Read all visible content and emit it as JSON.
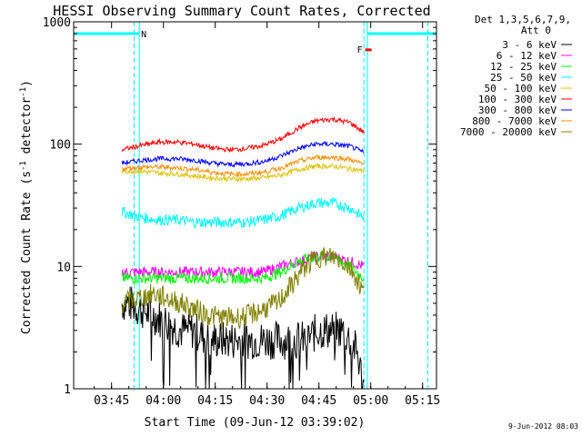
{
  "chart_data": {
    "type": "line",
    "title": "HESSI Observing Summary Count Rates, Corrected",
    "xlabel": "Start Time (09-Jun-12 03:39:02)",
    "ylabel_main": "Corrected Count Rate (s",
    "ylabel_sup1": "-1",
    "ylabel_mid": " detector",
    "ylabel_sup2": "-1",
    "ylabel_end": ")",
    "y_scale": "log",
    "ylim": [
      1,
      1000
    ],
    "xlim_minutes": [
      -5.0,
      100.0
    ],
    "x_ticks": [
      {
        "minute": 5.97,
        "label": "03:45"
      },
      {
        "minute": 20.97,
        "label": "04:00"
      },
      {
        "minute": 35.97,
        "label": "04:15"
      },
      {
        "minute": 50.97,
        "label": "04:30"
      },
      {
        "minute": 65.97,
        "label": "04:45"
      },
      {
        "minute": 80.97,
        "label": "05:00"
      },
      {
        "minute": 95.97,
        "label": "05:15"
      }
    ],
    "y_ticks": [
      {
        "value": 1,
        "label": "1"
      },
      {
        "value": 10,
        "label": "10"
      },
      {
        "value": 100,
        "label": "100"
      },
      {
        "value": 1000,
        "label": "1000"
      }
    ],
    "legend_header": [
      "Det 1,3,5,6,7,9,",
      "Att 0"
    ],
    "legend_position": "outside-right",
    "series": [
      {
        "name": "3 - 6 keV",
        "color": "#000000",
        "x": [
          9,
          11,
          14,
          18,
          22,
          26,
          30,
          34,
          38,
          42,
          46,
          50,
          54,
          58,
          62,
          66,
          70,
          73,
          75,
          77,
          79
        ],
        "values": [
          5,
          5,
          4.5,
          4,
          3.5,
          3,
          3,
          2.5,
          2.5,
          2.5,
          2.5,
          2.5,
          2.5,
          2.5,
          2.5,
          3,
          3,
          3,
          2.5,
          2,
          1
        ]
      },
      {
        "name": "6 - 12 keV",
        "color": "#ff00ff",
        "x": [
          9,
          15,
          20,
          25,
          30,
          35,
          40,
          45,
          50,
          55,
          60,
          65,
          70,
          75,
          79
        ],
        "values": [
          9,
          9,
          9,
          9,
          9,
          9,
          9,
          9,
          9,
          10,
          11,
          12,
          12,
          11,
          10
        ]
      },
      {
        "name": "12 - 25 keV",
        "color": "#00ff00",
        "x": [
          9,
          15,
          20,
          25,
          30,
          35,
          40,
          45,
          50,
          55,
          60,
          65,
          70,
          75,
          79
        ],
        "values": [
          8,
          8,
          8,
          8,
          8,
          8,
          8,
          8,
          8,
          9,
          11,
          12,
          12,
          10,
          8
        ]
      },
      {
        "name": "25 - 50 keV",
        "color": "#00ffff",
        "x": [
          9,
          15,
          20,
          25,
          30,
          35,
          40,
          45,
          50,
          55,
          60,
          65,
          70,
          75,
          79
        ],
        "values": [
          28,
          25,
          24,
          24,
          23,
          23,
          23,
          23,
          24,
          26,
          30,
          33,
          33,
          30,
          25
        ]
      },
      {
        "name": "50 - 100 keV",
        "color": "#e0c000",
        "x": [
          9,
          15,
          20,
          25,
          30,
          35,
          40,
          45,
          50,
          55,
          60,
          65,
          70,
          75,
          79
        ],
        "values": [
          60,
          60,
          58,
          57,
          55,
          53,
          52,
          52,
          53,
          56,
          62,
          66,
          66,
          63,
          60
        ]
      },
      {
        "name": "100 - 300 keV",
        "color": "#ff0000",
        "x": [
          9,
          15,
          20,
          25,
          30,
          35,
          40,
          45,
          50,
          55,
          60,
          65,
          70,
          75,
          79
        ],
        "values": [
          90,
          98,
          104,
          104,
          100,
          93,
          90,
          92,
          98,
          110,
          135,
          155,
          160,
          150,
          125
        ]
      },
      {
        "name": "300 - 800 keV",
        "color": "#0000ff",
        "x": [
          9,
          15,
          20,
          25,
          30,
          35,
          40,
          45,
          50,
          55,
          60,
          65,
          70,
          75,
          79
        ],
        "values": [
          70,
          74,
          76,
          76,
          74,
          70,
          68,
          69,
          72,
          80,
          92,
          100,
          100,
          96,
          85
        ]
      },
      {
        "name": "800 - 7000 keV",
        "color": "#ff8c00",
        "x": [
          9,
          15,
          20,
          25,
          30,
          35,
          40,
          45,
          50,
          55,
          60,
          65,
          70,
          75,
          79
        ],
        "values": [
          63,
          65,
          65,
          64,
          62,
          59,
          57,
          57,
          59,
          64,
          72,
          78,
          78,
          75,
          68
        ]
      },
      {
        "name": "7000 - 20000 keV",
        "color": "#808000",
        "x": [
          9,
          14,
          18,
          22,
          26,
          30,
          34,
          38,
          42,
          46,
          50,
          54,
          58,
          62,
          66,
          70,
          73,
          76,
          79
        ],
        "values": [
          5,
          5.5,
          6,
          5.5,
          5,
          4.5,
          4,
          3.8,
          3.8,
          4,
          4.5,
          5,
          7,
          10,
          12,
          12,
          11,
          9,
          6
        ]
      }
    ],
    "attenuator_bars": [
      {
        "start_minute": -5.0,
        "end_minute": 14.0,
        "level": 800
      },
      {
        "start_minute": 80.0,
        "end_minute": 100.0,
        "level": 800
      }
    ],
    "solid_vlines_minutes": [
      14.0,
      80.0
    ],
    "dashed_vlines_minutes": [
      12.5,
      79.0,
      97.5
    ],
    "markers": [
      {
        "label": "N",
        "minute": 14.5,
        "value": 800,
        "color": "#00ffff"
      },
      {
        "label": "F",
        "minute": 77.0,
        "value": 600,
        "color": "#ff0000"
      }
    ]
  },
  "timestamp": "9-Jun-2012 08:03"
}
